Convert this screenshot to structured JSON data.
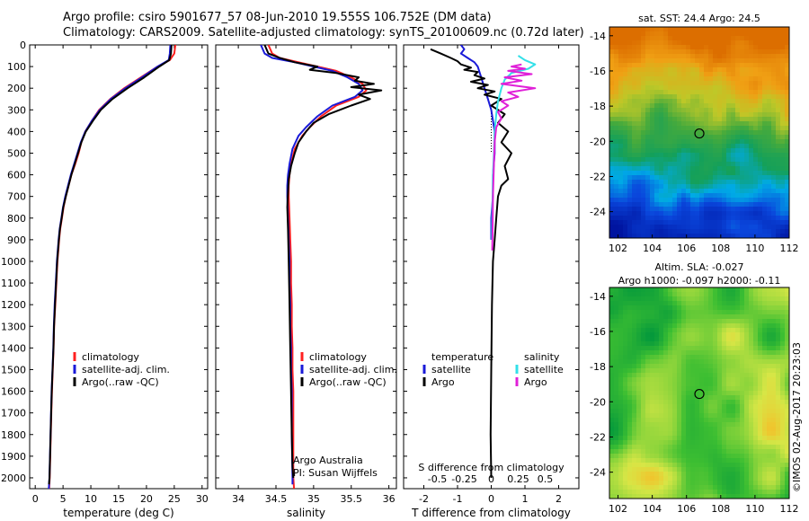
{
  "title": {
    "line1": "Argo profile: csiro 5901677_57 08-Jun-2010 19.555S 106.752E (DM data)",
    "line2": "Climatology: CARS2009. Satellite-adjusted climatology: synTS_20100609.nc (0.72d later)"
  },
  "credit": "©IMOS 02-Aug-2017 20:23:03",
  "colors": {
    "climatology": "#ff2020",
    "satellite": "#1a1ad8",
    "argo": "#000000",
    "sat_salinity": "#33e0e8",
    "argo_salinity": "#e020d8"
  },
  "depth_axis": {
    "min": 0,
    "max": 2050,
    "ticks": [
      "0",
      "100",
      "200",
      "300",
      "400",
      "500",
      "600",
      "700",
      "800",
      "900",
      "1000",
      "1100",
      "1200",
      "1300",
      "1400",
      "1500",
      "1600",
      "1700",
      "1800",
      "1900",
      "2000"
    ]
  },
  "chart_data": [
    {
      "type": "line",
      "id": "temperature",
      "xlabel": "temperature (deg C)",
      "xlim": [
        -1,
        31
      ],
      "xticks": [
        "0",
        "5",
        "10",
        "15",
        "20",
        "25",
        "30"
      ],
      "series": [
        {
          "name": "climatology",
          "color": "#ff2020",
          "x": [
            25.2,
            25.0,
            24.2,
            22.0,
            19.0,
            16.0,
            13.5,
            11.5,
            10.2,
            9.0,
            8.3,
            7.8,
            7.2,
            6.5,
            6.0,
            5.5,
            5.1,
            4.8,
            4.5,
            4.3,
            4.0,
            3.8,
            3.6,
            3.4,
            3.3,
            3.15,
            3.0,
            2.9,
            2.8,
            2.7,
            2.6,
            2.5
          ],
          "y": [
            0,
            40,
            70,
            100,
            150,
            200,
            250,
            300,
            350,
            400,
            450,
            500,
            550,
            600,
            650,
            700,
            750,
            800,
            850,
            900,
            1000,
            1100,
            1200,
            1300,
            1400,
            1500,
            1600,
            1700,
            1800,
            1900,
            2000,
            2050
          ]
        },
        {
          "name": "satellite-adj. clim.",
          "color": "#1a1ad8",
          "x": [
            24.3,
            24.2,
            24.0,
            22.0,
            19.2,
            16.2,
            13.6,
            11.6,
            10.2,
            9.0,
            8.2,
            7.6,
            7.0,
            6.4,
            5.9,
            5.4,
            5.0,
            4.7,
            4.4,
            4.2,
            3.9,
            3.7,
            3.5,
            3.35,
            3.25,
            3.1,
            2.95,
            2.85,
            2.75,
            2.65,
            2.55,
            2.45
          ],
          "y": [
            0,
            40,
            70,
            100,
            150,
            200,
            250,
            300,
            350,
            400,
            450,
            500,
            550,
            600,
            650,
            700,
            750,
            800,
            850,
            900,
            1000,
            1100,
            1200,
            1300,
            1400,
            1500,
            1600,
            1700,
            1800,
            1900,
            2000,
            2050
          ]
        },
        {
          "name": "Argo(..raw -QC)",
          "color": "#000000",
          "x": [
            24.5,
            24.4,
            24.1,
            22.3,
            19.6,
            16.6,
            13.9,
            11.8,
            10.4,
            9.1,
            8.3,
            7.7,
            7.1,
            6.5,
            6.0,
            5.5,
            5.05,
            4.75,
            4.45,
            4.25,
            3.95,
            3.75,
            3.55,
            3.38,
            3.28,
            3.12,
            2.97,
            2.87,
            2.77,
            2.67,
            2.57,
            2.47
          ],
          "y": [
            0,
            40,
            70,
            100,
            150,
            200,
            250,
            300,
            350,
            400,
            450,
            500,
            550,
            600,
            650,
            700,
            750,
            800,
            850,
            900,
            1000,
            1100,
            1200,
            1300,
            1400,
            1500,
            1600,
            1700,
            1800,
            1900,
            2000,
            2030
          ]
        }
      ],
      "legend": [
        "climatology",
        "satellite-adj. clim.",
        "Argo(..raw -QC)"
      ]
    },
    {
      "type": "line",
      "id": "salinity",
      "xlabel": "salinity",
      "xlim": [
        33.7,
        36.1
      ],
      "xticks": [
        "34",
        "34.5",
        "35",
        "35.5",
        "36"
      ],
      "series": [
        {
          "name": "climatology",
          "color": "#ff2020",
          "x": [
            34.4,
            34.45,
            34.55,
            34.8,
            35.05,
            35.3,
            35.5,
            35.65,
            35.7,
            35.6,
            35.3,
            35.1,
            34.95,
            34.85,
            34.75,
            34.7,
            34.68,
            34.67,
            34.67,
            34.68,
            34.69,
            34.7,
            34.7,
            34.71,
            34.71,
            34.72,
            34.72,
            34.73,
            34.73,
            34.73,
            34.74
          ],
          "y": [
            0,
            40,
            60,
            80,
            100,
            120,
            150,
            180,
            210,
            240,
            280,
            330,
            380,
            420,
            480,
            550,
            600,
            650,
            700,
            800,
            900,
            1000,
            1100,
            1200,
            1300,
            1400,
            1500,
            1600,
            1800,
            2000,
            2050
          ]
        },
        {
          "name": "satellite-adj. clim.",
          "color": "#1a1ad8",
          "x": [
            34.3,
            34.35,
            34.45,
            34.75,
            35.0,
            35.25,
            35.45,
            35.6,
            35.65,
            35.55,
            35.25,
            35.05,
            34.9,
            34.8,
            34.72,
            34.68,
            34.66,
            34.65,
            34.65,
            34.66,
            34.67,
            34.68,
            34.68,
            34.69,
            34.69,
            34.7,
            34.7,
            34.71,
            34.71,
            34.72,
            34.72
          ],
          "y": [
            0,
            40,
            60,
            80,
            100,
            120,
            150,
            180,
            210,
            240,
            280,
            330,
            380,
            420,
            480,
            550,
            600,
            650,
            700,
            800,
            900,
            1000,
            1100,
            1200,
            1300,
            1400,
            1500,
            1600,
            1800,
            2000,
            2030
          ]
        },
        {
          "name": "Argo(..raw -QC)",
          "color": "#000000",
          "x": [
            34.35,
            34.4,
            34.55,
            34.75,
            35.05,
            34.95,
            35.3,
            35.6,
            35.55,
            35.8,
            35.5,
            35.9,
            35.6,
            35.75,
            35.5,
            35.2,
            35.0,
            34.9,
            34.8,
            34.75,
            34.7,
            34.67,
            34.66,
            34.65,
            34.66,
            34.67,
            34.68,
            34.69,
            34.7,
            34.71,
            34.72,
            34.73
          ],
          "y": [
            0,
            40,
            60,
            80,
            100,
            115,
            130,
            150,
            165,
            180,
            195,
            210,
            230,
            250,
            280,
            320,
            360,
            400,
            450,
            500,
            560,
            620,
            680,
            750,
            850,
            1000,
            1200,
            1400,
            1600,
            1800,
            1950,
            2000
          ]
        }
      ],
      "legend": [
        "climatology",
        "satellite-adj. clim.",
        "Argo(..raw -QC)"
      ],
      "annotation": [
        "Argo Australia",
        "PI: Susan Wijffels"
      ]
    },
    {
      "type": "line",
      "id": "difference",
      "xlabel": "T difference from climatology",
      "xlabel_top": "S difference from climatology",
      "xlim": [
        -2.6,
        2.6
      ],
      "xticks": [
        "-2",
        "-1",
        "0",
        "1",
        "2"
      ],
      "top_ticks": [
        {
          "label": "-0.5",
          "at": -1.6
        },
        {
          "label": "-0.25",
          "at": -0.8
        },
        {
          "label": "0",
          "at": 0
        },
        {
          "label": "0.25",
          "at": 0.8
        },
        {
          "label": "0.5",
          "at": 1.6
        }
      ],
      "series": [
        {
          "name": "T satellite",
          "color": "#1a1ad8",
          "x": [
            -0.9,
            -0.8,
            -0.9,
            -0.7,
            -0.5,
            -0.4,
            -0.3,
            -0.2,
            -0.1,
            0.0,
            0.1,
            0.1,
            0.05,
            0.05,
            0.0,
            0.0
          ],
          "y": [
            0,
            20,
            40,
            60,
            80,
            100,
            150,
            200,
            250,
            300,
            400,
            500,
            600,
            700,
            800,
            900
          ]
        },
        {
          "name": "T Argo",
          "color": "#000000",
          "x": [
            -1.8,
            -1.5,
            -1.2,
            -1.0,
            -0.9,
            -0.6,
            -0.8,
            -0.4,
            -0.5,
            -0.2,
            -0.6,
            -0.1,
            -0.4,
            0.1,
            -0.2,
            0.3,
            0.0,
            0.4,
            0.2,
            0.5,
            0.3,
            0.6,
            0.4,
            0.5,
            0.3,
            0.2,
            0.15,
            0.1,
            0.05,
            0.02,
            0.0,
            -0.02,
            0.0
          ],
          "y": [
            20,
            40,
            60,
            75,
            90,
            105,
            115,
            125,
            140,
            155,
            170,
            185,
            200,
            215,
            230,
            250,
            280,
            320,
            360,
            400,
            450,
            500,
            560,
            620,
            650,
            700,
            800,
            900,
            1000,
            1200,
            1500,
            1800,
            2000
          ]
        },
        {
          "name": "S satellite",
          "color": "#33e0e8",
          "x": [
            0.8,
            1.0,
            1.3,
            1.1,
            0.6,
            0.4,
            0.3,
            0.2,
            0.15,
            0.1,
            0.08,
            0.05,
            0.04,
            0.03,
            0.02
          ],
          "y": [
            50,
            70,
            90,
            110,
            130,
            160,
            200,
            260,
            320,
            400,
            500,
            600,
            700,
            800,
            900
          ]
        },
        {
          "name": "S Argo",
          "color": "#e020d8",
          "x": [
            0.9,
            0.6,
            1.0,
            0.5,
            1.2,
            0.4,
            0.9,
            0.3,
            1.3,
            0.5,
            0.8,
            0.3,
            0.5,
            0.2,
            0.3,
            0.15,
            0.1,
            0.08,
            0.05,
            0.04,
            0.03
          ],
          "y": [
            90,
            100,
            110,
            120,
            135,
            150,
            165,
            180,
            200,
            220,
            240,
            260,
            280,
            310,
            340,
            380,
            450,
            550,
            700,
            850,
            950
          ]
        }
      ],
      "legend_t_title": "temperature",
      "legend_s_title": "salinity",
      "legend_t": [
        "satellite",
        "Argo"
      ],
      "legend_s": [
        "satellite",
        "Argo"
      ]
    },
    {
      "type": "heatmap",
      "id": "sst_map",
      "title": "sat. SST: 24.4  Argo: 24.5",
      "xlim": [
        101.5,
        112
      ],
      "ylim": [
        -25.5,
        -13.5
      ],
      "xticks": [
        "102",
        "104",
        "106",
        "108",
        "110",
        "112"
      ],
      "yticks": [
        "-14",
        "-16",
        "-18",
        "-20",
        "-22",
        "-24"
      ],
      "marker": {
        "x": 106.752,
        "y": -19.555
      }
    },
    {
      "type": "heatmap",
      "id": "sla_map",
      "title": "Altim. SLA: -0.027",
      "subtitle": "Argo h1000: -0.097 h2000: -0.11",
      "xlim": [
        101.5,
        112
      ],
      "ylim": [
        -25.5,
        -13.5
      ],
      "xticks": [
        "102",
        "104",
        "106",
        "108",
        "110",
        "112"
      ],
      "yticks": [
        "-14",
        "-16",
        "-18",
        "-20",
        "-22",
        "-24"
      ],
      "marker": {
        "x": 106.752,
        "y": -19.555
      }
    }
  ]
}
